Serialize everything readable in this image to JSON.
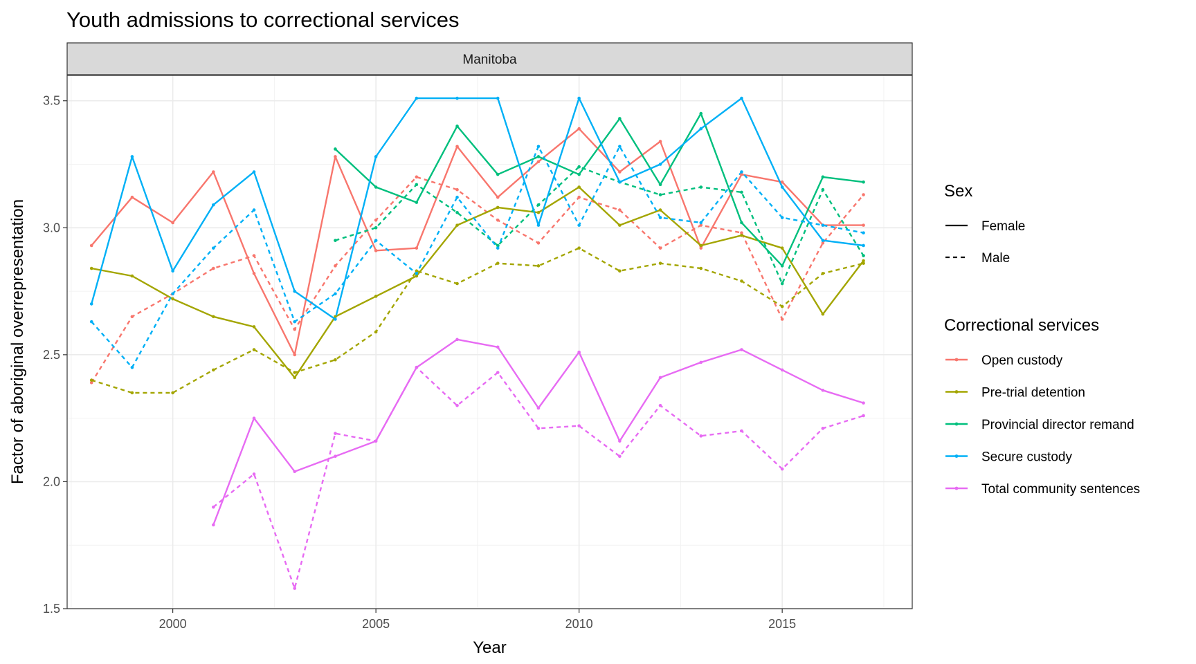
{
  "chart_data": {
    "type": "line",
    "title": "Youth admissions to correctional services",
    "facet": "Manitoba",
    "xlabel": "Year",
    "ylabel": "Factor of aboriginal overrepresentation",
    "xlim": [
      1997.4,
      2018.2
    ],
    "ylim": [
      1.5,
      3.6
    ],
    "x_ticks": [
      2000,
      2005,
      2010,
      2015
    ],
    "y_ticks": [
      1.5,
      2.0,
      2.5,
      3.0,
      3.5
    ],
    "x_tick_labels": [
      "2000",
      "2005",
      "2010",
      "2015"
    ],
    "y_tick_labels": [
      "1.5",
      "2.0",
      "2.5",
      "3.0",
      "3.5"
    ],
    "grid": true,
    "legend_position": "right",
    "legend_sex_title": "Sex",
    "legend_sex": [
      {
        "label": "Female",
        "dash": "solid"
      },
      {
        "label": "Male",
        "dash": "dashed"
      }
    ],
    "legend_service_title": "Correctional services",
    "legend_services": [
      {
        "label": "Open custody",
        "color": "#F8766D"
      },
      {
        "label": "Pre-trial detention",
        "color": "#A3A500"
      },
      {
        "label": "Provincial director remand",
        "color": "#00BF7D"
      },
      {
        "label": "Secure custody",
        "color": "#00B0F6"
      },
      {
        "label": "Total community sentences",
        "color": "#E76BF3"
      }
    ],
    "x": [
      1998,
      1999,
      2000,
      2001,
      2002,
      2003,
      2004,
      2005,
      2006,
      2007,
      2008,
      2009,
      2010,
      2011,
      2012,
      2013,
      2014,
      2015,
      2016,
      2017
    ],
    "series": [
      {
        "service": "Open custody",
        "sex": "Female",
        "color": "#F8766D",
        "dash": "solid",
        "values": [
          2.93,
          3.12,
          3.02,
          3.22,
          2.82,
          2.5,
          3.28,
          2.91,
          2.92,
          3.32,
          3.12,
          3.26,
          3.39,
          3.22,
          3.34,
          2.92,
          3.21,
          3.18,
          3.01,
          3.01
        ]
      },
      {
        "service": "Open custody",
        "sex": "Male",
        "color": "#F8766D",
        "dash": "dashed",
        "values": [
          2.39,
          2.65,
          2.74,
          2.84,
          2.89,
          2.6,
          2.85,
          3.03,
          3.2,
          3.15,
          3.03,
          2.94,
          3.12,
          3.07,
          2.92,
          3.01,
          2.98,
          2.64,
          2.94,
          3.13
        ]
      },
      {
        "service": "Pre-trial detention",
        "sex": "Female",
        "color": "#A3A500",
        "dash": "solid",
        "values": [
          2.84,
          2.81,
          2.72,
          2.65,
          2.61,
          2.41,
          2.65,
          2.73,
          2.81,
          3.01,
          3.08,
          3.06,
          3.16,
          3.01,
          3.07,
          2.93,
          2.97,
          2.92,
          2.66,
          2.87
        ]
      },
      {
        "service": "Pre-trial detention",
        "sex": "Male",
        "color": "#A3A500",
        "dash": "dashed",
        "values": [
          2.4,
          2.35,
          2.35,
          2.44,
          2.52,
          2.43,
          2.48,
          2.59,
          2.83,
          2.78,
          2.86,
          2.85,
          2.92,
          2.83,
          2.86,
          2.84,
          2.79,
          2.69,
          2.82,
          2.86
        ]
      },
      {
        "service": "Provincial director remand",
        "sex": "Female",
        "color": "#00BF7D",
        "dash": "solid",
        "values": [
          null,
          null,
          null,
          null,
          null,
          null,
          3.31,
          3.16,
          3.1,
          3.4,
          3.21,
          3.28,
          3.21,
          3.43,
          3.17,
          3.45,
          3.02,
          2.85,
          3.2,
          3.18
        ]
      },
      {
        "service": "Provincial director remand",
        "sex": "Male",
        "color": "#00BF7D",
        "dash": "dashed",
        "values": [
          null,
          null,
          null,
          null,
          null,
          null,
          2.95,
          3.0,
          3.17,
          3.06,
          2.93,
          3.09,
          3.24,
          3.18,
          3.13,
          3.16,
          3.14,
          2.78,
          3.15,
          2.89
        ]
      },
      {
        "service": "Secure custody",
        "sex": "Female",
        "color": "#00B0F6",
        "dash": "solid",
        "values": [
          2.7,
          3.28,
          2.83,
          3.09,
          3.22,
          2.75,
          2.64,
          3.28,
          3.51,
          3.51,
          3.51,
          3.01,
          3.51,
          3.18,
          3.25,
          3.39,
          3.51,
          3.16,
          2.95,
          2.93
        ]
      },
      {
        "service": "Secure custody",
        "sex": "Male",
        "color": "#00B0F6",
        "dash": "dashed",
        "values": [
          2.63,
          2.45,
          2.74,
          2.92,
          3.07,
          2.63,
          2.74,
          2.95,
          2.82,
          3.12,
          2.92,
          3.32,
          3.01,
          3.32,
          3.04,
          3.02,
          3.22,
          3.04,
          3.01,
          2.98
        ]
      },
      {
        "service": "Total community sentences",
        "sex": "Female",
        "color": "#E76BF3",
        "dash": "solid",
        "values": [
          null,
          null,
          null,
          1.83,
          2.25,
          2.04,
          2.1,
          2.16,
          2.45,
          2.56,
          2.53,
          2.29,
          2.51,
          2.16,
          2.41,
          2.47,
          2.52,
          2.44,
          2.36,
          2.31
        ]
      },
      {
        "service": "Total community sentences",
        "sex": "Male",
        "color": "#E76BF3",
        "dash": "dashed",
        "values": [
          null,
          null,
          null,
          1.9,
          2.03,
          1.58,
          2.19,
          2.16,
          2.45,
          2.3,
          2.43,
          2.21,
          2.22,
          2.1,
          2.3,
          2.18,
          2.2,
          2.05,
          2.21,
          2.26
        ]
      }
    ]
  }
}
